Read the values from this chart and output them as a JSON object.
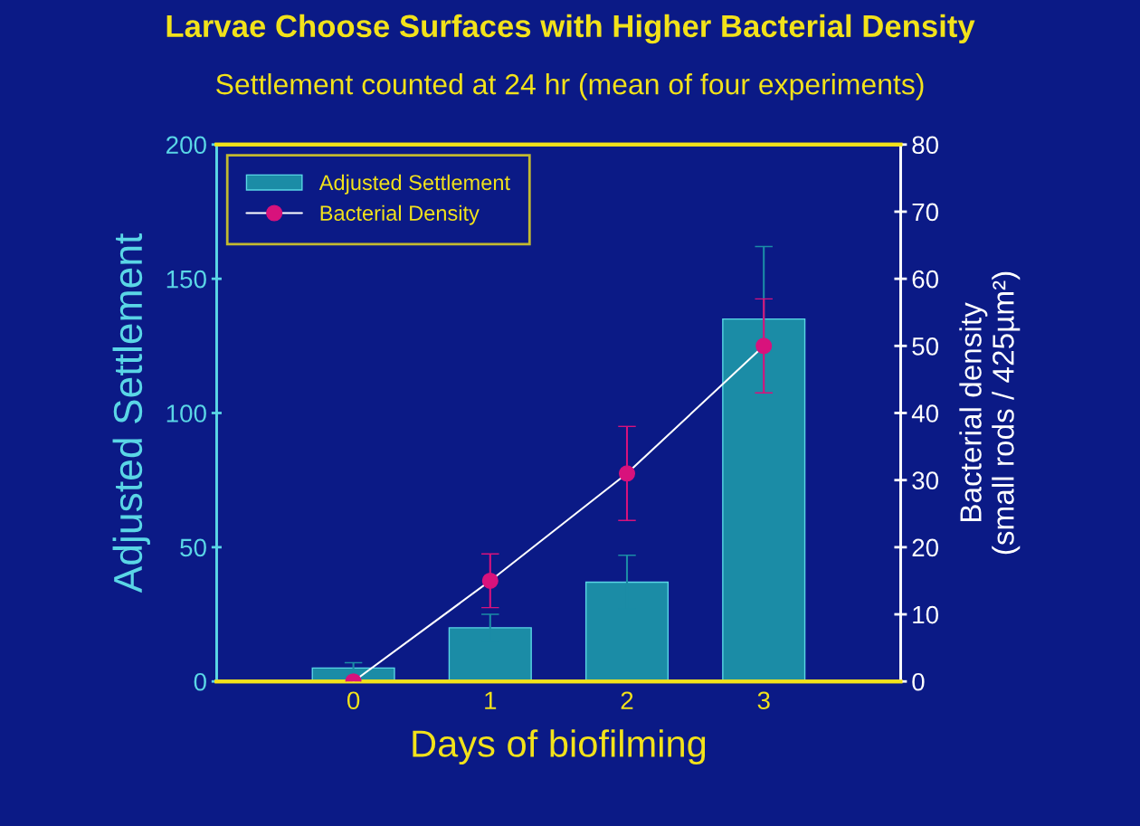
{
  "chart_data": {
    "type": "bar",
    "title": "Larvae Choose Surfaces with Higher Bacterial Density",
    "subtitle": "Settlement counted at 24 hr (mean of four experiments)",
    "xlabel": "Days of biofilming",
    "ylabel": "Adjusted Settlement",
    "y2label": "Bacterial density\n(small rods / 425µm²)",
    "x": [
      0,
      1,
      2,
      3
    ],
    "series": [
      {
        "name": "Adjusted Settlement",
        "color": "#1b8ca6",
        "values": [
          5,
          20,
          37,
          135
        ],
        "errors": [
          2,
          5,
          10,
          27
        ]
      },
      {
        "name": "Bacterial Density",
        "type": "line",
        "axis": "y2",
        "color": "#d8127c",
        "marker": "circle",
        "values": [
          0,
          15,
          31,
          50
        ],
        "errors": [
          null,
          4,
          7,
          7
        ]
      }
    ],
    "xlim": [
      -1,
      4
    ],
    "xticks": [
      0,
      1,
      2,
      3
    ],
    "ylim": [
      0,
      200
    ],
    "yticks": [
      0,
      50,
      100,
      150,
      200
    ],
    "y2lim": [
      0,
      80
    ],
    "y2ticks": [
      0,
      10,
      20,
      30,
      40,
      50,
      60,
      70,
      80
    ],
    "legend": "top left",
    "grid": false
  }
}
